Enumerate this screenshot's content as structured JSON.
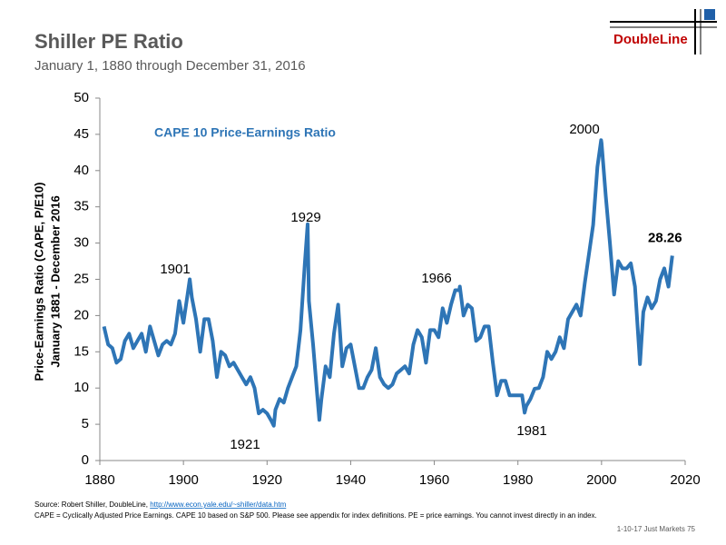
{
  "chart_data": {
    "type": "line",
    "title": "Shiller PE Ratio",
    "subtitle": "January 1, 1880 through December 31, 2016",
    "logo": "DoubleLine",
    "ylabel": [
      "Price-Earnings Ratio (CAPE, P/E10)",
      "January 1881 - December 2016"
    ],
    "annotations": [
      "1901",
      "1921",
      "1929",
      "1966",
      "1981",
      "2000"
    ],
    "footer": {
      "source_prefix": "Source: Robert Shiller, DoubleLine, ",
      "source_link": "http://www.econ.yale.edu/~shiller/data.htm",
      "note": "CAPE = Cyclically Adjusted Price Earnings. CAPE 10 based on S&P 500. Please see appendix for index definitions. PE = price earnings. You cannot invest directly in an index.",
      "page": "1-10-17 Just Markets   75"
    },
    "xlim": [
      1880,
      2020
    ],
    "xticks": [
      1880,
      1900,
      1920,
      1940,
      1960,
      1980,
      2000,
      2020
    ],
    "ylim": [
      0,
      50
    ],
    "yticks": [
      0,
      5,
      10,
      15,
      20,
      25,
      30,
      35,
      40,
      45,
      50
    ],
    "x": [
      1881,
      1882,
      1883,
      1884,
      1885,
      1886,
      1887,
      1888,
      1889,
      1890,
      1891,
      1892,
      1893,
      1894,
      1895,
      1896,
      1897,
      1898,
      1899,
      1900,
      1901,
      1901.5,
      1902,
      1903,
      1904,
      1905,
      1906,
      1907,
      1908,
      1909,
      1910,
      1911,
      1912,
      1913,
      1914,
      1915,
      1916,
      1917,
      1918,
      1919,
      1920,
      1921,
      1921.6,
      1922,
      1923,
      1924,
      1925,
      1926,
      1927,
      1928,
      1929,
      1929.7,
      1930,
      1931,
      1932,
      1932.5,
      1933,
      1934,
      1935,
      1936,
      1937,
      1938,
      1939,
      1940,
      1941,
      1942,
      1943,
      1944,
      1945,
      1946,
      1947,
      1948,
      1949,
      1950,
      1951,
      1952,
      1953,
      1954,
      1955,
      1956,
      1957,
      1958,
      1959,
      1960,
      1961,
      1962,
      1963,
      1964,
      1965,
      1966,
      1966.1,
      1967,
      1968,
      1969,
      1970,
      1971,
      1972,
      1973,
      1974,
      1975,
      1976,
      1977,
      1978,
      1979,
      1980,
      1981,
      1981.6,
      1982,
      1983,
      1984,
      1985,
      1986,
      1987,
      1988,
      1989,
      1990,
      1991,
      1992,
      1993,
      1994,
      1995,
      1996,
      1997,
      1998,
      1999,
      1999.9,
      2000,
      2001,
      2002,
      2003,
      2004,
      2005,
      2006,
      2007,
      2008,
      2009,
      2009.2,
      2010,
      2011,
      2012,
      2013,
      2014,
      2015,
      2016,
      2016.92
    ],
    "series": [
      {
        "name": "CAPE 10 Price-Earnings Ratio",
        "color": "#2e75b6",
        "values": [
          18.5,
          16,
          15.5,
          13.5,
          14,
          16.5,
          17.5,
          15.5,
          16.5,
          17.5,
          15,
          18.5,
          16.5,
          14.5,
          16,
          16.5,
          16,
          17.5,
          22,
          19,
          23,
          25,
          22.5,
          19.5,
          15,
          19.5,
          19.5,
          16.5,
          11.5,
          15,
          14.5,
          13,
          13.5,
          12.5,
          11.5,
          10.5,
          11.5,
          10,
          6.5,
          7,
          6.5,
          5.5,
          4.8,
          7,
          8.5,
          8,
          10,
          11.5,
          13,
          18,
          27,
          32.6,
          22,
          16,
          9,
          5.6,
          8.5,
          13,
          11.5,
          17.5,
          21.5,
          13,
          15.5,
          16,
          13,
          10,
          10,
          11.5,
          12.5,
          15.5,
          11.5,
          10.5,
          10,
          10.5,
          12,
          12.5,
          13,
          12,
          16,
          18,
          17,
          13.5,
          18,
          18,
          17,
          21,
          19,
          21.5,
          23.5,
          23.5,
          24,
          20,
          21.5,
          21,
          16.5,
          17,
          18.5,
          18.5,
          13.5,
          9,
          11,
          11,
          9,
          9,
          9,
          9,
          6.6,
          7.5,
          8.5,
          9.9,
          10,
          11.5,
          15,
          14,
          15,
          17,
          15.5,
          19.5,
          20.5,
          21.5,
          20,
          24.5,
          28.5,
          32.5,
          40.5,
          44.2,
          43.8,
          36.5,
          30,
          22.9,
          27.5,
          26.5,
          26.5,
          27.2,
          24,
          15.2,
          13.3,
          20.5,
          22.5,
          21,
          22,
          25,
          26.5,
          24,
          28.26
        ]
      }
    ]
  }
}
